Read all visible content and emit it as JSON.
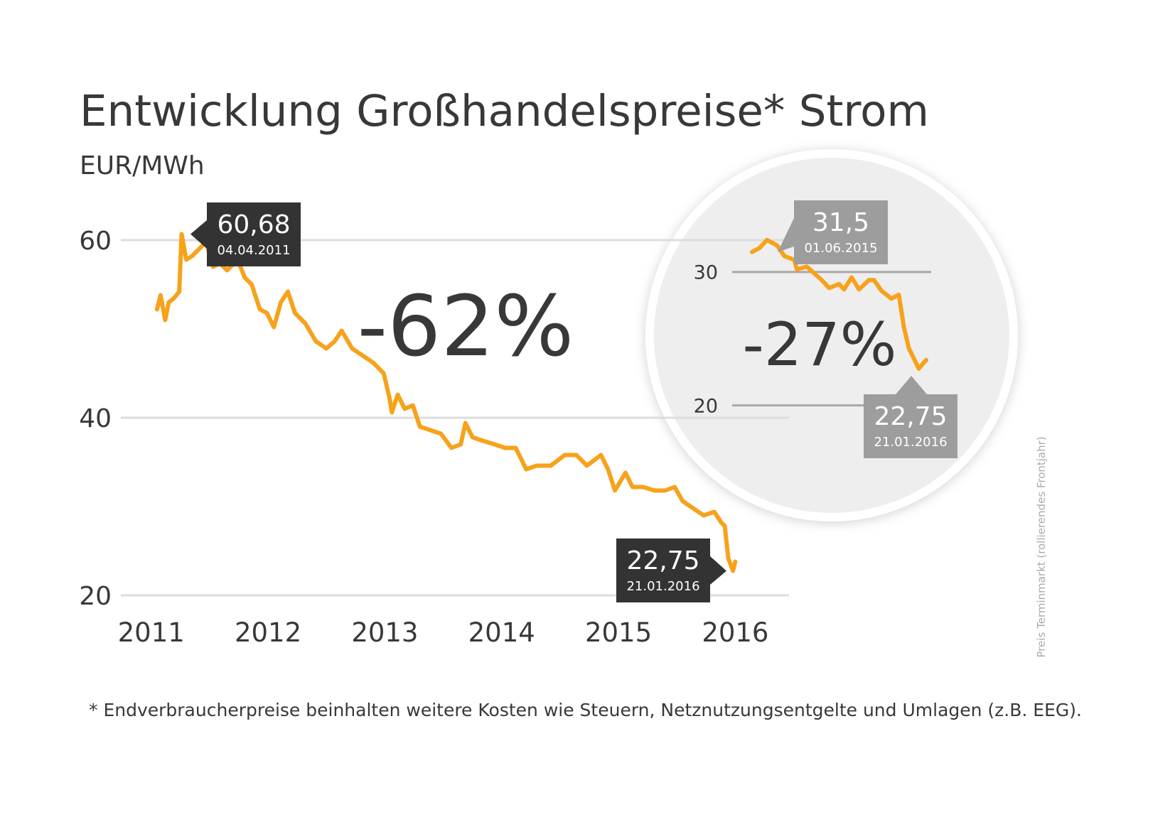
{
  "title": "Entwicklung Großhandelspreise* Strom",
  "subtitle": "EUR/MWh",
  "note": "* Endverbraucherpreise beinhalten weitere Kosten wie Steuern, Netznutzungsentgelte und Umlagen (z.B. EEG).",
  "source": "Preis Terminmarkt (rollierendes Frontjahr)",
  "chart_data": [
    {
      "type": "line",
      "color": "#f7a21b",
      "grid": true,
      "xlim": [
        2010.74,
        2016.46
      ],
      "ylim": [
        20,
        64
      ],
      "xticks": [
        2011,
        2012,
        2013,
        2014,
        2015,
        2016
      ],
      "yticks": [
        20,
        40,
        60
      ],
      "change_label": "-62%",
      "x": [
        2011.05,
        2011.08,
        2011.12,
        2011.15,
        2011.19,
        2011.24,
        2011.26,
        2011.3,
        2011.35,
        2011.41,
        2011.47,
        2011.53,
        2011.59,
        2011.65,
        2011.74,
        2011.8,
        2011.86,
        2011.93,
        2011.99,
        2012.05,
        2012.11,
        2012.17,
        2012.23,
        2012.32,
        2012.41,
        2012.5,
        2012.57,
        2012.63,
        2012.72,
        2012.81,
        2012.9,
        2012.99,
        2013.04,
        2013.06,
        2013.11,
        2013.17,
        2013.24,
        2013.3,
        2013.39,
        2013.48,
        2013.57,
        2013.65,
        2013.69,
        2013.75,
        2013.84,
        2013.94,
        2014.03,
        2014.12,
        2014.21,
        2014.3,
        2014.42,
        2014.54,
        2014.64,
        2014.73,
        2014.85,
        2014.91,
        2014.97,
        2015.06,
        2015.12,
        2015.21,
        2015.31,
        2015.4,
        2015.48,
        2015.55,
        2015.64,
        2015.73,
        2015.82,
        2015.88,
        2015.91,
        2015.94,
        2015.98,
        2016.0
      ],
      "values": [
        52.2,
        53.8,
        51,
        53,
        53.4,
        54.2,
        60.68,
        57.8,
        58.2,
        59,
        59.8,
        57,
        57.4,
        56.6,
        57.8,
        55.8,
        55,
        52.2,
        51.8,
        50.2,
        53,
        54.2,
        51.8,
        50.6,
        48.6,
        47.8,
        48.6,
        49.8,
        47.8,
        47,
        46.2,
        45,
        42.2,
        40.6,
        42.6,
        41,
        41.4,
        39,
        38.6,
        38.2,
        36.6,
        37,
        39.4,
        37.8,
        37.4,
        37,
        36.6,
        36.6,
        34.2,
        34.6,
        34.6,
        35.8,
        35.8,
        34.6,
        35.8,
        34.2,
        31.8,
        33.8,
        32.2,
        32.2,
        31.8,
        31.8,
        32.2,
        30.6,
        29.8,
        29,
        29.4,
        28.2,
        27.8,
        24.2,
        22.75,
        23.8
      ],
      "annotations": [
        {
          "value": 60.68,
          "label": "60,68",
          "date": "04.04.2011"
        },
        {
          "value": 22.75,
          "label": "22,75",
          "date": "21.01.2016"
        }
      ]
    },
    {
      "type": "line",
      "color": "#f7a21b",
      "grid": true,
      "xlim": [
        2015.0,
        2016.2
      ],
      "ylim": [
        17,
        35
      ],
      "yticks": [
        20,
        30
      ],
      "change_label": "-27%",
      "x": [
        2015.42,
        2015.45,
        2015.48,
        2015.52,
        2015.55,
        2015.59,
        2015.6,
        2015.64,
        2015.67,
        2015.7,
        2015.73,
        2015.77,
        2015.79,
        2015.82,
        2015.85,
        2015.89,
        2015.91,
        2015.94,
        2015.98,
        2016.01,
        2016.03,
        2016.05,
        2016.09,
        2016.11,
        2016.12
      ],
      "values": [
        31.5,
        31.8,
        32.4,
        32.0,
        31.2,
        30.9,
        30.2,
        30.4,
        29.9,
        29.4,
        28.8,
        29.1,
        28.7,
        29.6,
        28.7,
        29.4,
        29.4,
        28.6,
        28.0,
        28.3,
        25.9,
        24.3,
        22.75,
        23.2,
        23.4
      ],
      "annotations": [
        {
          "value": 31.5,
          "label": "31,5",
          "date": "01.06.2015"
        },
        {
          "value": 22.75,
          "label": "22,75",
          "date": "21.01.2016"
        }
      ]
    }
  ]
}
